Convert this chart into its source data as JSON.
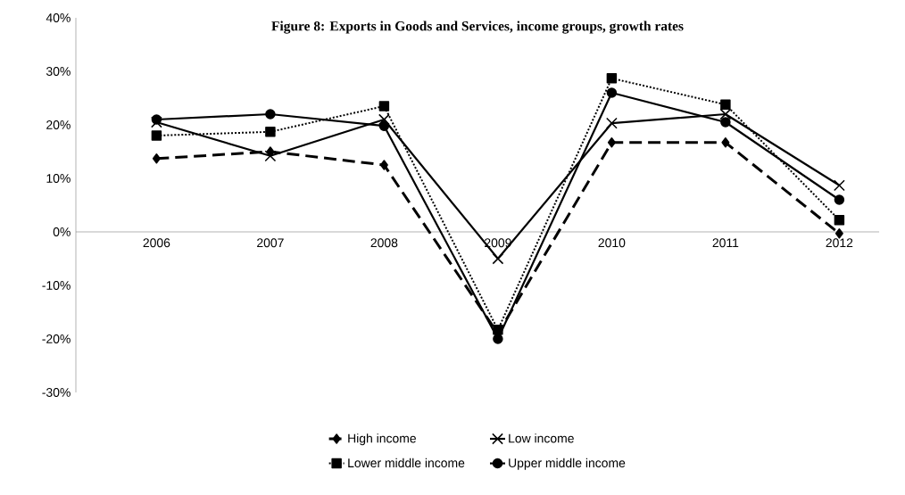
{
  "chart_data": {
    "type": "line",
    "title": "Figure 8: Exports in Goods and Services, income groups, growth rates",
    "categories": [
      "2006",
      "2007",
      "2008",
      "2009",
      "2010",
      "2011",
      "2012"
    ],
    "series": [
      {
        "name": "High income",
        "color": "#000000",
        "marker": "diamond",
        "line_style": "dashed",
        "values": [
          13.7,
          15,
          12.5,
          -19,
          16.7,
          16.7,
          -0.3
        ]
      },
      {
        "name": "Low income",
        "color": "#000000",
        "marker": "cross",
        "line_style": "solid",
        "values": [
          20.5,
          14.2,
          21,
          -5,
          20.3,
          22,
          8.7
        ]
      },
      {
        "name": "Lower middle income",
        "color": "#000000",
        "marker": "square",
        "line_style": "dotted",
        "values": [
          18,
          18.7,
          23.5,
          -18.3,
          28.7,
          23.8,
          2.2
        ]
      },
      {
        "name": "Upper middle income",
        "color": "#000000",
        "marker": "circle",
        "line_style": "solid",
        "values": [
          21,
          22,
          19.8,
          -20,
          26,
          20.5,
          6
        ]
      }
    ],
    "ylim": [
      -30,
      40
    ],
    "yticks": [
      {
        "value": -30,
        "label": "-30%"
      },
      {
        "value": -20,
        "label": "-20%"
      },
      {
        "value": -10,
        "label": "-10%"
      },
      {
        "value": 0,
        "label": "0%"
      },
      {
        "value": 10,
        "label": "10%"
      },
      {
        "value": 20,
        "label": "20%"
      },
      {
        "value": 30,
        "label": "30%"
      },
      {
        "value": 40,
        "label": "40%"
      }
    ],
    "grid": false,
    "legend": "bottom"
  }
}
